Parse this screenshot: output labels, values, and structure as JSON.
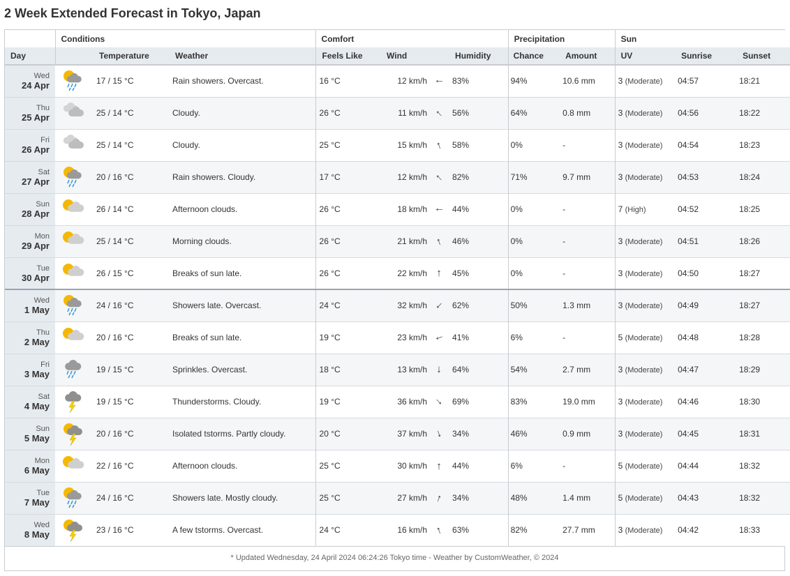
{
  "title": "2 Week Extended Forecast in Tokyo, Japan",
  "groups": {
    "conditions": "Conditions",
    "comfort": "Comfort",
    "precipitation": "Precipitation",
    "sun": "Sun"
  },
  "columns": {
    "day": "Day",
    "temperature": "Temperature",
    "weather": "Weather",
    "feels_like": "Feels Like",
    "wind": "Wind",
    "humidity": "Humidity",
    "chance": "Chance",
    "amount": "Amount",
    "uv": "UV",
    "sunrise": "Sunrise",
    "sunset": "Sunset"
  },
  "rows": [
    {
      "dow": "Wed",
      "date": "24 Apr",
      "icon": "sun-cloud-rain-icon",
      "temp": "17 / 15 °C",
      "weather": "Rain showers. Overcast.",
      "feels": "16 °C",
      "wind": "12 km/h",
      "wind_dir_deg": 270,
      "humidity": "83%",
      "chance": "94%",
      "amount": "10.6 mm",
      "uv": "3",
      "uv_level": "(Moderate)",
      "sunrise": "04:57",
      "sunset": "18:21"
    },
    {
      "dow": "Thu",
      "date": "25 Apr",
      "icon": "cloudy-icon",
      "temp": "25 / 14 °C",
      "weather": "Cloudy.",
      "feels": "26 °C",
      "wind": "11 km/h",
      "wind_dir_deg": 315,
      "humidity": "56%",
      "chance": "64%",
      "amount": "0.8 mm",
      "uv": "3",
      "uv_level": "(Moderate)",
      "sunrise": "04:56",
      "sunset": "18:22"
    },
    {
      "dow": "Fri",
      "date": "26 Apr",
      "icon": "cloudy-icon",
      "temp": "25 / 14 °C",
      "weather": "Cloudy.",
      "feels": "25 °C",
      "wind": "15 km/h",
      "wind_dir_deg": 340,
      "humidity": "58%",
      "chance": "0%",
      "amount": "-",
      "uv": "3",
      "uv_level": "(Moderate)",
      "sunrise": "04:54",
      "sunset": "18:23"
    },
    {
      "dow": "Sat",
      "date": "27 Apr",
      "icon": "sun-cloud-rain-icon",
      "temp": "20 / 16 °C",
      "weather": "Rain showers. Cloudy.",
      "feels": "17 °C",
      "wind": "12 km/h",
      "wind_dir_deg": 315,
      "humidity": "82%",
      "chance": "71%",
      "amount": "9.7 mm",
      "uv": "3",
      "uv_level": "(Moderate)",
      "sunrise": "04:53",
      "sunset": "18:24"
    },
    {
      "dow": "Sun",
      "date": "28 Apr",
      "icon": "partly-cloudy-icon",
      "temp": "26 / 14 °C",
      "weather": "Afternoon clouds.",
      "feels": "26 °C",
      "wind": "18 km/h",
      "wind_dir_deg": 270,
      "humidity": "44%",
      "chance": "0%",
      "amount": "-",
      "uv": "7",
      "uv_level": "(High)",
      "sunrise": "04:52",
      "sunset": "18:25"
    },
    {
      "dow": "Mon",
      "date": "29 Apr",
      "icon": "partly-cloudy-icon",
      "temp": "25 / 14 °C",
      "weather": "Morning clouds.",
      "feels": "26 °C",
      "wind": "21 km/h",
      "wind_dir_deg": 340,
      "humidity": "46%",
      "chance": "0%",
      "amount": "-",
      "uv": "3",
      "uv_level": "(Moderate)",
      "sunrise": "04:51",
      "sunset": "18:26"
    },
    {
      "dow": "Tue",
      "date": "30 Apr",
      "icon": "partly-cloudy-icon",
      "temp": "26 / 15 °C",
      "weather": "Breaks of sun late.",
      "feels": "26 °C",
      "wind": "22 km/h",
      "wind_dir_deg": 0,
      "humidity": "45%",
      "chance": "0%",
      "amount": "-",
      "uv": "3",
      "uv_level": "(Moderate)",
      "sunrise": "04:50",
      "sunset": "18:27"
    },
    {
      "dow": "Wed",
      "date": "1 May",
      "icon": "sun-cloud-rain-icon",
      "temp": "24 / 16 °C",
      "weather": "Showers late. Overcast.",
      "feels": "24 °C",
      "wind": "32 km/h",
      "wind_dir_deg": 225,
      "humidity": "62%",
      "chance": "50%",
      "amount": "1.3 mm",
      "uv": "3",
      "uv_level": "(Moderate)",
      "sunrise": "04:49",
      "sunset": "18:27"
    },
    {
      "dow": "Thu",
      "date": "2 May",
      "icon": "partly-cloudy-icon",
      "temp": "20 / 16 °C",
      "weather": "Breaks of sun late.",
      "feels": "19 °C",
      "wind": "23 km/h",
      "wind_dir_deg": 250,
      "humidity": "41%",
      "chance": "6%",
      "amount": "-",
      "uv": "5",
      "uv_level": "(Moderate)",
      "sunrise": "04:48",
      "sunset": "18:28"
    },
    {
      "dow": "Fri",
      "date": "3 May",
      "icon": "cloud-rain-icon",
      "temp": "19 / 15 °C",
      "weather": "Sprinkles. Overcast.",
      "feels": "18 °C",
      "wind": "13 km/h",
      "wind_dir_deg": 180,
      "humidity": "64%",
      "chance": "54%",
      "amount": "2.7 mm",
      "uv": "3",
      "uv_level": "(Moderate)",
      "sunrise": "04:47",
      "sunset": "18:29"
    },
    {
      "dow": "Sat",
      "date": "4 May",
      "icon": "thunderstorm-icon",
      "temp": "19 / 15 °C",
      "weather": "Thunderstorms. Cloudy.",
      "feels": "19 °C",
      "wind": "36 km/h",
      "wind_dir_deg": 135,
      "humidity": "69%",
      "chance": "83%",
      "amount": "19.0 mm",
      "uv": "3",
      "uv_level": "(Moderate)",
      "sunrise": "04:46",
      "sunset": "18:30"
    },
    {
      "dow": "Sun",
      "date": "5 May",
      "icon": "sun-thunderstorm-icon",
      "temp": "20 / 16 °C",
      "weather": "Isolated tstorms. Partly cloudy.",
      "feels": "20 °C",
      "wind": "37 km/h",
      "wind_dir_deg": 160,
      "humidity": "34%",
      "chance": "46%",
      "amount": "0.9 mm",
      "uv": "3",
      "uv_level": "(Moderate)",
      "sunrise": "04:45",
      "sunset": "18:31"
    },
    {
      "dow": "Mon",
      "date": "6 May",
      "icon": "partly-cloudy-icon",
      "temp": "22 / 16 °C",
      "weather": "Afternoon clouds.",
      "feels": "25 °C",
      "wind": "30 km/h",
      "wind_dir_deg": 0,
      "humidity": "44%",
      "chance": "6%",
      "amount": "-",
      "uv": "5",
      "uv_level": "(Moderate)",
      "sunrise": "04:44",
      "sunset": "18:32"
    },
    {
      "dow": "Tue",
      "date": "7 May",
      "icon": "sun-cloud-rain-icon",
      "temp": "24 / 16 °C",
      "weather": "Showers late. Mostly cloudy.",
      "feels": "25 °C",
      "wind": "27 km/h",
      "wind_dir_deg": 20,
      "humidity": "34%",
      "chance": "48%",
      "amount": "1.4 mm",
      "uv": "5",
      "uv_level": "(Moderate)",
      "sunrise": "04:43",
      "sunset": "18:32"
    },
    {
      "dow": "Wed",
      "date": "8 May",
      "icon": "sun-thunderstorm-icon",
      "temp": "23 / 16 °C",
      "weather": "A few tstorms. Overcast.",
      "feels": "24 °C",
      "wind": "16 km/h",
      "wind_dir_deg": 340,
      "humidity": "63%",
      "chance": "82%",
      "amount": "27.7 mm",
      "uv": "3",
      "uv_level": "(Moderate)",
      "sunrise": "04:42",
      "sunset": "18:33"
    }
  ],
  "footer": "* Updated Wednesday, 24 April 2024 06:24:26 Tokyo time - Weather by CustomWeather, © 2024",
  "colors": {
    "header_bg": "#e6ebf0",
    "border": "#c8ccd0",
    "sun": "#f5b800",
    "cloud": "#c8c8c8",
    "dark_cloud": "#9a9a9a",
    "rain": "#3d9ad6",
    "bolt": "#f5d000"
  }
}
